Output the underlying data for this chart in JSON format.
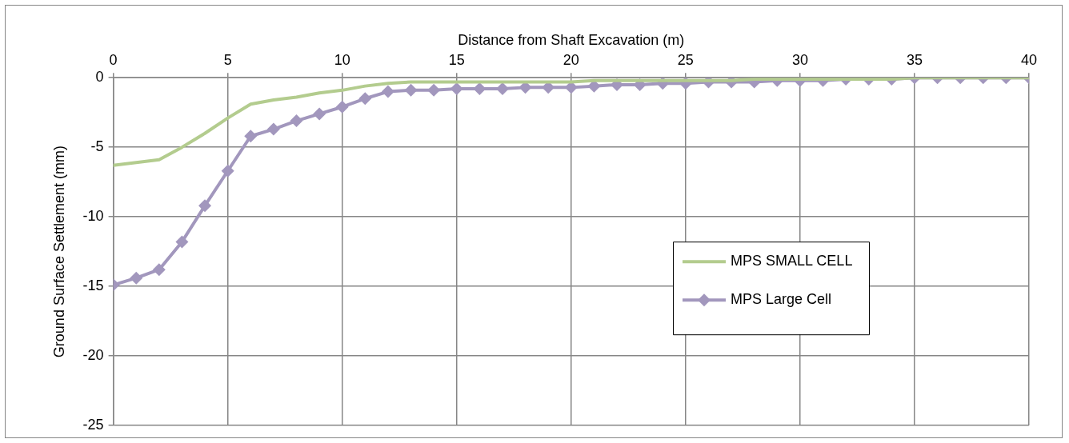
{
  "chart_data": {
    "type": "line",
    "xlabel": "Distance from Shaft Excavation (m)",
    "ylabel": "Ground Surface Settlement (mm)",
    "x": [
      0,
      1,
      2,
      3,
      4,
      5,
      6,
      7,
      8,
      9,
      10,
      11,
      12,
      13,
      14,
      15,
      16,
      17,
      18,
      19,
      20,
      21,
      22,
      23,
      24,
      25,
      26,
      27,
      28,
      29,
      30,
      31,
      32,
      33,
      34,
      35,
      36,
      37,
      38,
      39,
      40
    ],
    "xlim": [
      0,
      40
    ],
    "xticks": [
      0,
      5,
      10,
      15,
      20,
      25,
      30,
      35,
      40
    ],
    "ylim": [
      -25,
      0
    ],
    "yticks": [
      -25,
      -20,
      -15,
      -10,
      -5,
      0
    ],
    "grid": true,
    "legend": "right",
    "series": [
      {
        "name": "MPS SMALL CELL",
        "color": "#b3cc8e",
        "marker": "none",
        "values": [
          -6.3,
          -6.1,
          -5.9,
          -5.0,
          -4.0,
          -2.9,
          -1.9,
          -1.6,
          -1.4,
          -1.1,
          -0.9,
          -0.6,
          -0.4,
          -0.3,
          -0.3,
          -0.3,
          -0.3,
          -0.3,
          -0.3,
          -0.3,
          -0.3,
          -0.2,
          -0.2,
          -0.2,
          -0.2,
          -0.2,
          -0.2,
          -0.2,
          -0.1,
          -0.1,
          -0.1,
          -0.1,
          -0.1,
          -0.1,
          -0.1,
          0,
          0,
          0,
          0,
          0,
          0
        ]
      },
      {
        "name": "MPS Large Cell",
        "color": "#a297bd",
        "marker": "diamond",
        "values": [
          -14.9,
          -14.4,
          -13.8,
          -11.8,
          -9.2,
          -6.7,
          -4.2,
          -3.7,
          -3.1,
          -2.6,
          -2.1,
          -1.5,
          -1.0,
          -0.9,
          -0.9,
          -0.8,
          -0.8,
          -0.8,
          -0.7,
          -0.7,
          -0.7,
          -0.6,
          -0.5,
          -0.5,
          -0.4,
          -0.4,
          -0.3,
          -0.3,
          -0.3,
          -0.2,
          -0.2,
          -0.2,
          -0.1,
          -0.1,
          -0.1,
          0,
          0,
          0,
          0,
          0,
          0
        ]
      }
    ]
  }
}
